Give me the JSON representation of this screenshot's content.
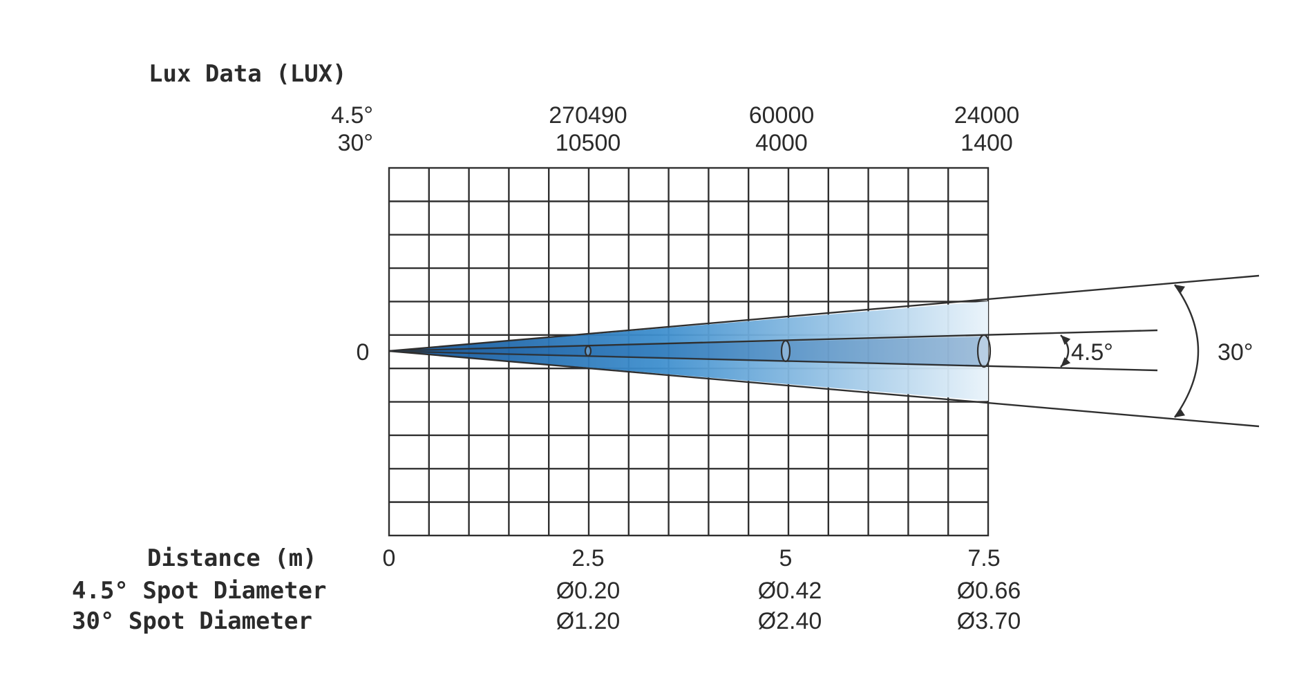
{
  "chart_data": {
    "type": "diagram",
    "lux_heading": "Lux Data (LUX)",
    "lux_rows": {
      "beam_narrow": "4.5°",
      "beam_wide": "30°"
    },
    "lux_values": [
      {
        "narrow": "270490",
        "wide": "10500"
      },
      {
        "narrow": "60000",
        "wide": "4000"
      },
      {
        "narrow": "24000",
        "wide": "1400"
      }
    ],
    "zero_label": "0",
    "distance_label": "Distance (m)",
    "distance_ticks": [
      "0",
      "2.5",
      "5",
      "7.5"
    ],
    "distance_values": [
      0,
      2.5,
      5,
      7.5
    ],
    "spot_narrow_label": "4.5° Spot Diameter",
    "spot_wide_label": "30° Spot Diameter",
    "spot_narrow": [
      "Ø0.20",
      "Ø0.42",
      "Ø0.66"
    ],
    "spot_wide": [
      "Ø1.20",
      "Ø2.40",
      "Ø3.70"
    ],
    "angle_narrow": "4.5°",
    "angle_wide": "30°",
    "colors": {
      "beam_dark": "#1560a8",
      "beam_light": "#e6f1f9",
      "grid": "#333333"
    }
  }
}
